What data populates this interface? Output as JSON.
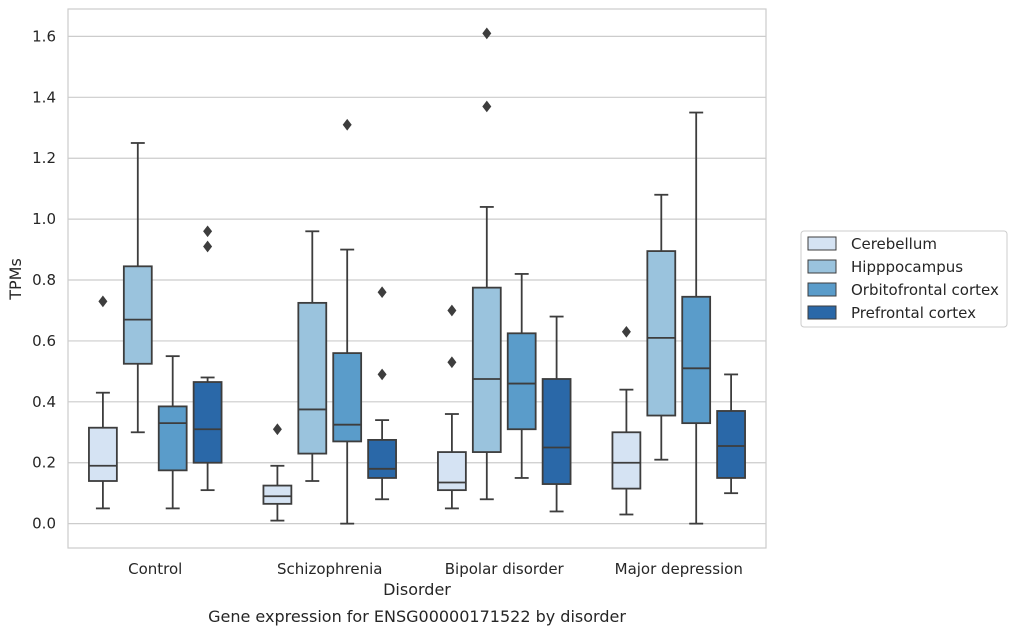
{
  "caption": "Gene expression for ENSG00000171522 by disorder",
  "chart_data": {
    "type": "box",
    "xlabel": "Disorder",
    "ylabel": "TPMs",
    "ylim": [
      -0.08,
      1.69
    ],
    "yticks": [
      0.0,
      0.2,
      0.4,
      0.6,
      0.8,
      1.0,
      1.2,
      1.4,
      1.6
    ],
    "ytick_labels": [
      "0.0",
      "0.2",
      "0.4",
      "0.6",
      "0.8",
      "1.0",
      "1.2",
      "1.4",
      "1.6"
    ],
    "grid": "horizontal",
    "legend_position": "right",
    "categories": [
      "Control",
      "Schizophrenia",
      "Bipolar disorder",
      "Major depression"
    ],
    "series": [
      {
        "name": "Cerebellum",
        "color": "#d5e3f3",
        "boxes": [
          {
            "whisker_low": 0.05,
            "q1": 0.14,
            "median": 0.19,
            "q3": 0.315,
            "whisker_high": 0.43,
            "outliers": [
              0.73
            ]
          },
          {
            "whisker_low": 0.01,
            "q1": 0.065,
            "median": 0.09,
            "q3": 0.125,
            "whisker_high": 0.19,
            "outliers": [
              0.31
            ]
          },
          {
            "whisker_low": 0.05,
            "q1": 0.11,
            "median": 0.135,
            "q3": 0.235,
            "whisker_high": 0.36,
            "outliers": [
              0.53,
              0.7
            ]
          },
          {
            "whisker_low": 0.03,
            "q1": 0.115,
            "median": 0.2,
            "q3": 0.3,
            "whisker_high": 0.44,
            "outliers": [
              0.63
            ]
          }
        ]
      },
      {
        "name": "Hipppocampus",
        "color": "#9ac3dd",
        "boxes": [
          {
            "whisker_low": 0.3,
            "q1": 0.525,
            "median": 0.67,
            "q3": 0.845,
            "whisker_high": 1.25,
            "outliers": []
          },
          {
            "whisker_low": 0.14,
            "q1": 0.23,
            "median": 0.375,
            "q3": 0.725,
            "whisker_high": 0.96,
            "outliers": []
          },
          {
            "whisker_low": 0.08,
            "q1": 0.235,
            "median": 0.475,
            "q3": 0.775,
            "whisker_high": 1.04,
            "outliers": [
              1.37,
              1.61
            ]
          },
          {
            "whisker_low": 0.21,
            "q1": 0.355,
            "median": 0.61,
            "q3": 0.895,
            "whisker_high": 1.08,
            "outliers": []
          }
        ]
      },
      {
        "name": "Orbitofrontal cortex",
        "color": "#5a9cca",
        "boxes": [
          {
            "whisker_low": 0.05,
            "q1": 0.175,
            "median": 0.33,
            "q3": 0.385,
            "whisker_high": 0.55,
            "outliers": []
          },
          {
            "whisker_low": 0.0,
            "q1": 0.27,
            "median": 0.325,
            "q3": 0.56,
            "whisker_high": 0.9,
            "outliers": [
              1.31
            ]
          },
          {
            "whisker_low": 0.15,
            "q1": 0.31,
            "median": 0.46,
            "q3": 0.625,
            "whisker_high": 0.82,
            "outliers": []
          },
          {
            "whisker_low": 0.0,
            "q1": 0.33,
            "median": 0.51,
            "q3": 0.745,
            "whisker_high": 1.35,
            "outliers": []
          }
        ]
      },
      {
        "name": "Prefrontal cortex",
        "color": "#2a68a8",
        "boxes": [
          {
            "whisker_low": 0.11,
            "q1": 0.2,
            "median": 0.31,
            "q3": 0.465,
            "whisker_high": 0.48,
            "outliers": [
              0.91,
              0.96
            ]
          },
          {
            "whisker_low": 0.08,
            "q1": 0.15,
            "median": 0.18,
            "q3": 0.275,
            "whisker_high": 0.34,
            "outliers": [
              0.49,
              0.76
            ]
          },
          {
            "whisker_low": 0.04,
            "q1": 0.13,
            "median": 0.25,
            "q3": 0.475,
            "whisker_high": 0.68,
            "outliers": []
          },
          {
            "whisker_low": 0.1,
            "q1": 0.15,
            "median": 0.255,
            "q3": 0.37,
            "whisker_high": 0.49,
            "outliers": []
          }
        ]
      }
    ]
  }
}
